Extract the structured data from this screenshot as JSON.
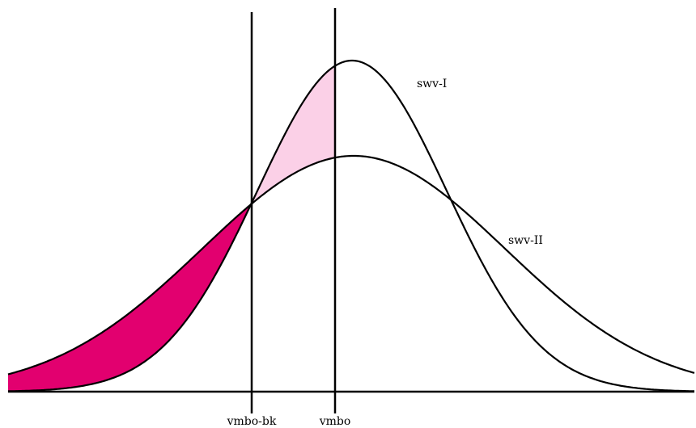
{
  "curves": [
    {
      "label": "swv-I"
    },
    {
      "label": "swv-II"
    }
  ],
  "markers": [
    {
      "label": "vmbo-bk"
    },
    {
      "label": "vmbo"
    }
  ]
}
